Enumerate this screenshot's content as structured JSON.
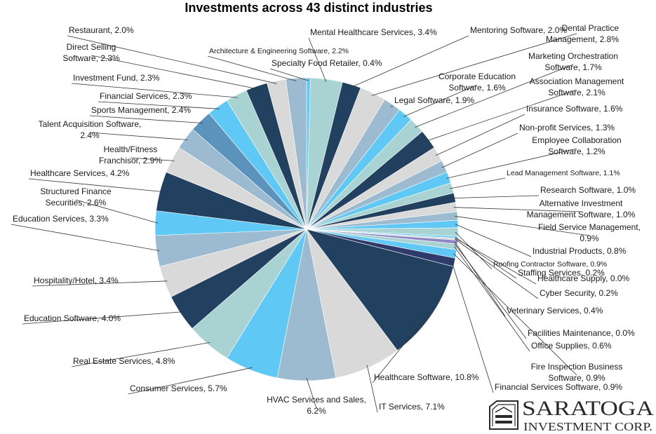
{
  "chart_data": {
    "type": "pie",
    "title": "Investments across 43 distinct industries",
    "slices": [
      {
        "label": "Specialty Food Retailer, 0.4%",
        "value": 0.4,
        "color": "#5fc8f4"
      },
      {
        "label": "Mental Healthcare Services, 3.4%",
        "value": 3.4,
        "color": "#a9d3d3"
      },
      {
        "label": "Mentoring Software, 2.0%",
        "value": 2.0,
        "color": "#22405f"
      },
      {
        "label": "Dental Practice Management, 2.8%",
        "value": 2.8,
        "color": "#d9d9d9"
      },
      {
        "label": "Legal Software, 1.9%",
        "value": 1.9,
        "color": "#9dbbd0"
      },
      {
        "label": "Corporate Education Software, 1.6%",
        "value": 1.6,
        "color": "#5fc8f4"
      },
      {
        "label": "Marketing Orchestration Software, 1.7%",
        "value": 1.7,
        "color": "#a9d3d3"
      },
      {
        "label": "Association Management Software, 2.1%",
        "value": 2.1,
        "color": "#22405f"
      },
      {
        "label": "Insurance Software, 1.6%",
        "value": 1.6,
        "color": "#d9d9d9"
      },
      {
        "label": "Non-profit Services, 1.3%",
        "value": 1.3,
        "color": "#9dbbd0"
      },
      {
        "label": "Employee Collaboration Software, 1.2%",
        "value": 1.2,
        "color": "#5fc8f4"
      },
      {
        "label": "Lead Management Software, 1.1%",
        "value": 1.1,
        "color": "#a9d3d3"
      },
      {
        "label": "Research Software, 1.0%",
        "value": 1.0,
        "color": "#22405f"
      },
      {
        "label": "Alternative Investment Management Software, 1.0%",
        "value": 1.0,
        "color": "#d9d9d9"
      },
      {
        "label": "Field Service Management, 0.9%",
        "value": 0.9,
        "color": "#9dbbd0"
      },
      {
        "label": "Industrial Products, 0.8%",
        "value": 0.8,
        "color": "#5fc8f4"
      },
      {
        "label": "Roofing Contractor Software, 0.9%",
        "value": 0.9,
        "color": "#a9d3d3"
      },
      {
        "label": "Staffing Services, 0.2%",
        "value": 0.2,
        "color": "#5fc8f4"
      },
      {
        "label": "Healthcare Supply, 0.0%",
        "value": 0.0,
        "color": "#9dbbd0"
      },
      {
        "label": "Cyber Security, 0.2%",
        "value": 0.2,
        "color": "#d9d9d9"
      },
      {
        "label": "Veterinary Services, 0.4%",
        "value": 0.4,
        "color": "#8e86c4"
      },
      {
        "label": "Facilities Maintenance, 0.0%",
        "value": 0.0,
        "color": "#22405f"
      },
      {
        "label": "Office Supplies, 0.6%",
        "value": 0.6,
        "color": "#a9d3d3"
      },
      {
        "label": "Fire Inspection Business Software, 0.9%",
        "value": 0.9,
        "color": "#5fc8f4"
      },
      {
        "label": "Financial Services Software, 0.9%",
        "value": 0.9,
        "color": "#2f3b6a"
      },
      {
        "label": "Healthcare Software, 10.8%",
        "value": 10.8,
        "color": "#22405f"
      },
      {
        "label": "IT Services, 7.1%",
        "value": 7.1,
        "color": "#d9d9d9"
      },
      {
        "label": "HVAC Services and Sales, 6.2%",
        "value": 6.2,
        "color": "#9dbbd0"
      },
      {
        "label": "Consumer Services, 5.7%",
        "value": 5.7,
        "color": "#5fc8f4"
      },
      {
        "label": "Real Estate Services, 4.8%",
        "value": 4.8,
        "color": "#a9d3d3"
      },
      {
        "label": "Education Software, 4.0%",
        "value": 4.0,
        "color": "#22405f"
      },
      {
        "label": "Hospitality/Hotel, 3.4%",
        "value": 3.4,
        "color": "#d9d9d9"
      },
      {
        "label": "Education Services, 3.3%",
        "value": 3.3,
        "color": "#9dbbd0"
      },
      {
        "label": "Structured Finance Securities, 2.6%",
        "value": 2.6,
        "color": "#5fc8f4"
      },
      {
        "label": "Healthcare Services, 4.2%",
        "value": 4.2,
        "color": "#22405f"
      },
      {
        "label": "Health/Fitness Franchisor, 2.9%",
        "value": 2.9,
        "color": "#d9d9d9"
      },
      {
        "label": "Talent Acquisition Software, 2.4%",
        "value": 2.4,
        "color": "#9dbbd0"
      },
      {
        "label": "Sports Management, 2.4%",
        "value": 2.4,
        "color": "#5b93bc"
      },
      {
        "label": "Financial Services, 2.3%",
        "value": 2.3,
        "color": "#5fc8f4"
      },
      {
        "label": "Investment Fund, 2.3%",
        "value": 2.3,
        "color": "#a9d3d3"
      },
      {
        "label": "Direct Selling Software, 2.3%",
        "value": 2.3,
        "color": "#22405f"
      },
      {
        "label": "Restaurant, 2.0%",
        "value": 2.0,
        "color": "#d9d9d9"
      },
      {
        "label": "Architecture & Engineering Software, 2.2%",
        "value": 2.2,
        "color": "#9dbbd0"
      }
    ]
  },
  "logo": {
    "name": "SARATOGA",
    "tagline": "INVESTMENT CORP."
  }
}
